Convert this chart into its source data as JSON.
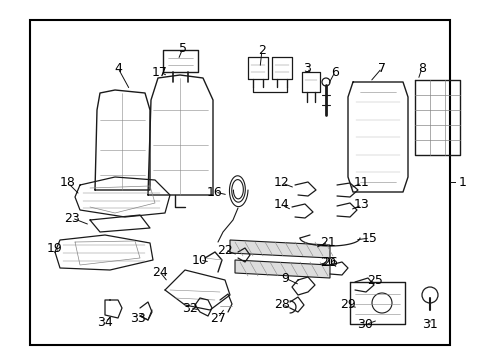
{
  "background_color": "#ffffff",
  "border_color": "#000000",
  "text_color": "#000000",
  "fig_width": 4.89,
  "fig_height": 3.6,
  "dpi": 100,
  "label_fontsize": 9,
  "ann_lw": 0.7
}
